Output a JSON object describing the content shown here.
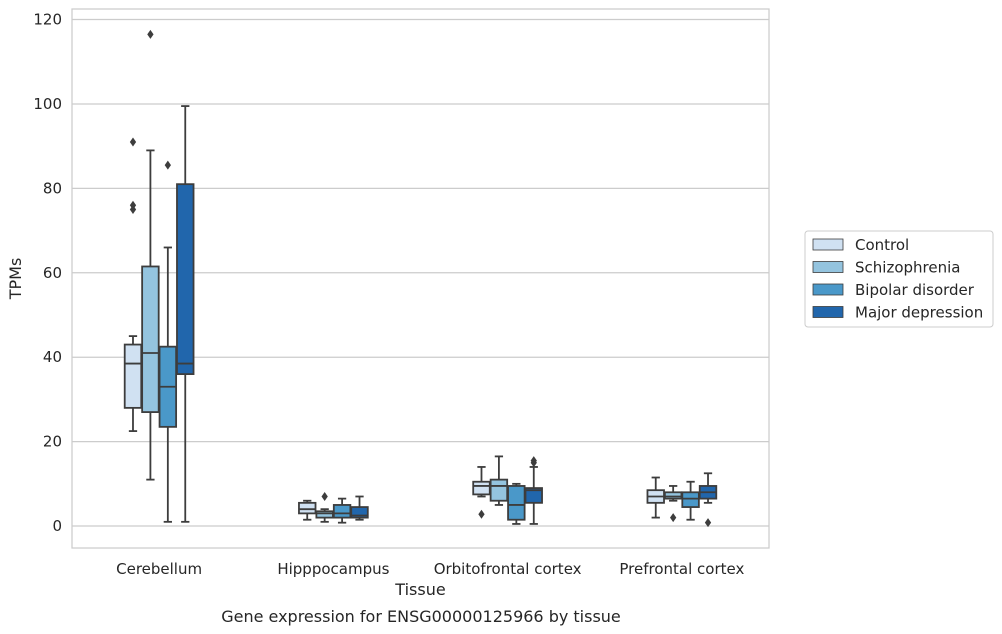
{
  "chart_data": {
    "type": "boxplot",
    "caption": "Gene expression for ENSG00000125966 by tissue",
    "xlabel": "Tissue",
    "ylabel": "TPMs",
    "ylim": [
      -5.2,
      122.5
    ],
    "yticks": [
      0,
      20,
      40,
      60,
      80,
      100,
      120
    ],
    "grid": true,
    "legend_position": "right",
    "categories": [
      "Cerebellum",
      "Hipppocampus",
      "Orbitofrontal cortex",
      "Prefrontal cortex"
    ],
    "series": [
      {
        "name": "Control",
        "color": "#d0e1f2",
        "boxes": [
          {
            "whislo": 22.5,
            "q1": 28.0,
            "med": 38.5,
            "q3": 43.0,
            "whishi": 45.0,
            "fliers": [
              75.0,
              76.0,
              91.0
            ]
          },
          {
            "whislo": 1.5,
            "q1": 3.0,
            "med": 4.0,
            "q3": 5.5,
            "whishi": 6.0,
            "fliers": []
          },
          {
            "whislo": 7.0,
            "q1": 7.5,
            "med": 9.5,
            "q3": 10.5,
            "whishi": 14.0,
            "fliers": [
              2.8
            ]
          },
          {
            "whislo": 2.0,
            "q1": 5.5,
            "med": 7.0,
            "q3": 8.5,
            "whishi": 11.5,
            "fliers": []
          }
        ]
      },
      {
        "name": "Schizophrenia",
        "color": "#94c4df",
        "boxes": [
          {
            "whislo": 11.0,
            "q1": 27.0,
            "med": 41.0,
            "q3": 61.5,
            "whishi": 89.0,
            "fliers": [
              116.5
            ]
          },
          {
            "whislo": 1.0,
            "q1": 2.0,
            "med": 3.0,
            "q3": 3.5,
            "whishi": 4.0,
            "fliers": [
              7.0
            ]
          },
          {
            "whislo": 5.0,
            "q1": 6.0,
            "med": 9.5,
            "q3": 11.0,
            "whishi": 16.5,
            "fliers": []
          },
          {
            "whislo": 6.0,
            "q1": 6.5,
            "med": 7.0,
            "q3": 8.0,
            "whishi": 9.5,
            "fliers": [
              2.0
            ]
          }
        ]
      },
      {
        "name": "Bipolar disorder",
        "color": "#4a98c9",
        "boxes": [
          {
            "whislo": 1.0,
            "q1": 23.5,
            "med": 33.0,
            "q3": 42.5,
            "whishi": 66.0,
            "fliers": [
              85.5
            ]
          },
          {
            "whislo": 0.8,
            "q1": 2.0,
            "med": 3.0,
            "q3": 5.0,
            "whishi": 6.5,
            "fliers": []
          },
          {
            "whislo": 0.5,
            "q1": 1.5,
            "med": 5.0,
            "q3": 9.5,
            "whishi": 10.0,
            "fliers": []
          },
          {
            "whislo": 1.5,
            "q1": 4.5,
            "med": 6.5,
            "q3": 8.0,
            "whishi": 10.5,
            "fliers": []
          }
        ]
      },
      {
        "name": "Major depression",
        "color": "#2166ac",
        "boxes": [
          {
            "whislo": 1.0,
            "q1": 36.0,
            "med": 38.5,
            "q3": 81.0,
            "whishi": 99.5,
            "fliers": []
          },
          {
            "whislo": 1.5,
            "q1": 2.0,
            "med": 2.5,
            "q3": 4.5,
            "whishi": 7.0,
            "fliers": []
          },
          {
            "whislo": 0.5,
            "q1": 5.5,
            "med": 8.5,
            "q3": 9.0,
            "whishi": 14.0,
            "fliers": [
              15.0,
              15.5
            ]
          },
          {
            "whislo": 5.5,
            "q1": 6.5,
            "med": 8.0,
            "q3": 9.5,
            "whishi": 12.5,
            "fliers": [
              0.8
            ]
          }
        ]
      }
    ]
  }
}
